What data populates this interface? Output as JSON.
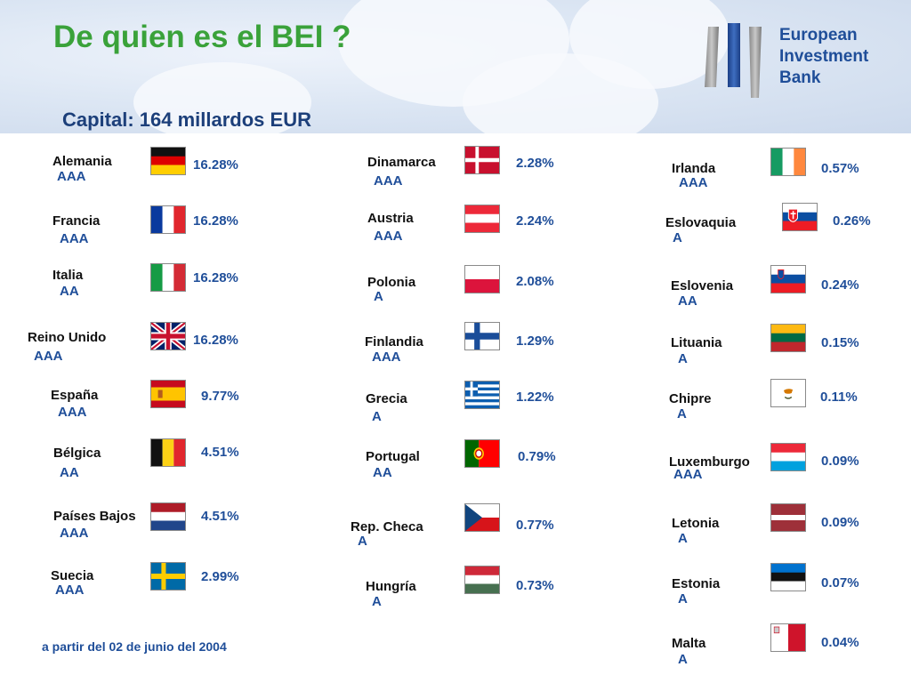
{
  "title": "De quien es el BEI ?",
  "subtitle": "Capital: 164 millardos EUR",
  "logo": {
    "line1": "European",
    "line2": "Investment",
    "line3": "Bank"
  },
  "footnote": "a partir del 02 de junio del 2004",
  "colors": {
    "title": "#3aa23a",
    "accent": "#1f4e99",
    "subtitle": "#1c3f7a"
  },
  "countries": [
    {
      "name": "Alemania",
      "rating": "AAA",
      "share": "16.28%",
      "flag": "de"
    },
    {
      "name": "Francia",
      "rating": "AAA",
      "share": "16.28%",
      "flag": "fr"
    },
    {
      "name": "Italia",
      "rating": "AA",
      "share": "16.28%",
      "flag": "it"
    },
    {
      "name": "Reino Unido",
      "rating": "AAA",
      "share": "16.28%",
      "flag": "gb"
    },
    {
      "name": "España",
      "rating": "AAA",
      "share": "9.77%",
      "flag": "es"
    },
    {
      "name": "Bélgica",
      "rating": "AA",
      "share": "4.51%",
      "flag": "be"
    },
    {
      "name": "Países Bajos",
      "rating": "AAA",
      "share": "4.51%",
      "flag": "nl"
    },
    {
      "name": "Suecia",
      "rating": "AAA",
      "share": "2.99%",
      "flag": "se"
    },
    {
      "name": "Dinamarca",
      "rating": "AAA",
      "share": "2.28%",
      "flag": "dk"
    },
    {
      "name": "Austria",
      "rating": "AAA",
      "share": "2.24%",
      "flag": "at"
    },
    {
      "name": "Polonia",
      "rating": "A",
      "share": "2.08%",
      "flag": "pl"
    },
    {
      "name": "Finlandia",
      "rating": "AAA",
      "share": "1.29%",
      "flag": "fi"
    },
    {
      "name": "Grecia",
      "rating": "A",
      "share": "1.22%",
      "flag": "gr"
    },
    {
      "name": "Portugal",
      "rating": "AA",
      "share": "0.79%",
      "flag": "pt"
    },
    {
      "name": "Rep. Checa",
      "rating": "A",
      "share": "0.77%",
      "flag": "cz"
    },
    {
      "name": "Hungría",
      "rating": "A",
      "share": "0.73%",
      "flag": "hu"
    },
    {
      "name": "Irlanda",
      "rating": "AAA",
      "share": "0.57%",
      "flag": "ie"
    },
    {
      "name": "Eslovaquia",
      "rating": "A",
      "share": "0.26%",
      "flag": "sk"
    },
    {
      "name": "Eslovenia",
      "rating": "AA",
      "share": "0.24%",
      "flag": "si"
    },
    {
      "name": "Lituania",
      "rating": "A",
      "share": "0.15%",
      "flag": "lt"
    },
    {
      "name": "Chipre",
      "rating": "A",
      "share": "0.11%",
      "flag": "cy"
    },
    {
      "name": "Luxemburgo",
      "rating": "AAA",
      "share": "0.09%",
      "flag": "lu"
    },
    {
      "name": "Letonia",
      "rating": "A",
      "share": "0.09%",
      "flag": "lv"
    },
    {
      "name": "Estonia",
      "rating": "A",
      "share": "0.07%",
      "flag": "ee"
    },
    {
      "name": "Malta",
      "rating": "A",
      "share": "0.04%",
      "flag": "mt"
    }
  ]
}
